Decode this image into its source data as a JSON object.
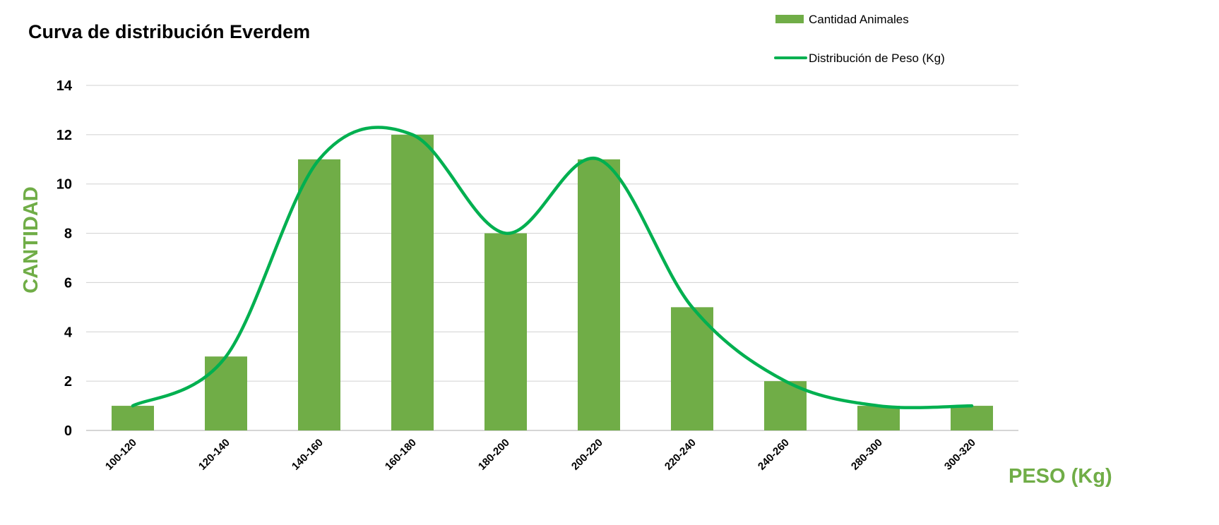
{
  "chart_data": {
    "type": "bar",
    "title": "Curva de distribución Everdem",
    "xlabel": "PESO (Kg)",
    "ylabel": "CANTIDAD",
    "categories": [
      "100-120",
      "120-140",
      "140-160",
      "160-180",
      "180-200",
      "200-220",
      "220-240",
      "240-260",
      "280-300",
      "300-320"
    ],
    "ylim": [
      0,
      14
    ],
    "yticks": [
      0,
      2,
      4,
      6,
      8,
      10,
      12,
      14
    ],
    "grid": true,
    "legend_position": "top-right",
    "series": [
      {
        "name": "Cantidad Animales",
        "kind": "bar",
        "color": "#70ad47",
        "values": [
          1,
          3,
          11,
          12,
          8,
          11,
          5,
          2,
          1,
          1
        ]
      },
      {
        "name": "Distribución de Peso (Kg)",
        "kind": "smooth-line",
        "color": "#00b050",
        "values": [
          1,
          3,
          11,
          12,
          8,
          11,
          5,
          2,
          1,
          1
        ]
      }
    ],
    "axis_title_color": "#70ad47"
  }
}
